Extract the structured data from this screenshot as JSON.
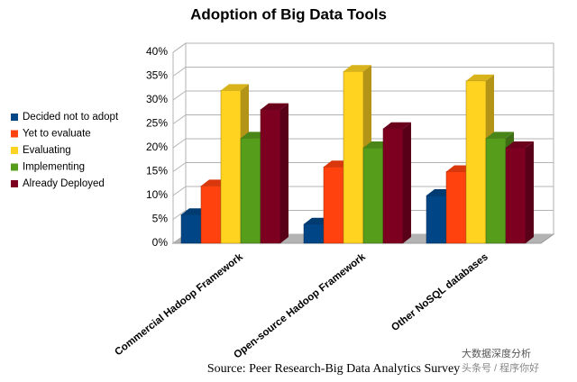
{
  "chart_data": {
    "type": "bar3d",
    "title": "Adoption of Big Data Tools",
    "categories": [
      "Commercial Hadoop Framework",
      "Open-source Hadoop Framework",
      "Other NoSQL databases"
    ],
    "series": [
      {
        "name": "Decided not to adopt",
        "color": "#004586",
        "values": [
          6,
          4,
          10
        ]
      },
      {
        "name": "Yet to evaluate",
        "color": "#ff420e",
        "values": [
          12,
          16,
          15
        ]
      },
      {
        "name": "Evaluating",
        "color": "#ffd320",
        "values": [
          32,
          36,
          34
        ]
      },
      {
        "name": "Implementing",
        "color": "#579d1c",
        "values": [
          22,
          20,
          22
        ]
      },
      {
        "name": "Already Deployed",
        "color": "#7e0021",
        "values": [
          28,
          24,
          20
        ]
      }
    ],
    "ylim": [
      0,
      40
    ],
    "yticks": [
      {
        "value": 0,
        "label": "0%"
      },
      {
        "value": 5,
        "label": "5%"
      },
      {
        "value": 10,
        "label": "10%"
      },
      {
        "value": 15,
        "label": "15%"
      },
      {
        "value": 20,
        "label": "20%"
      },
      {
        "value": 25,
        "label": "25%"
      },
      {
        "value": 30,
        "label": "30%"
      },
      {
        "value": 35,
        "label": "35%"
      },
      {
        "value": 40,
        "label": "40%"
      }
    ],
    "grid": true,
    "legend": "left",
    "source": "Source: Peer Research-Big Data Analytics Survey",
    "watermark": [
      "大数据深度分析",
      "头条号 / 程序你好"
    ]
  }
}
